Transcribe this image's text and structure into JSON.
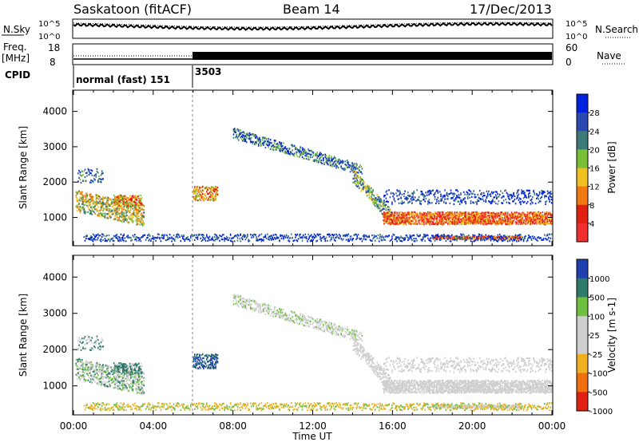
{
  "header": {
    "station": "Saskatoon (fitACF)",
    "beam": "Beam 14",
    "date": "17/Dec/2013"
  },
  "noise_panel": {
    "left_label": "N.Sky",
    "left_ticks": [
      "10^5",
      "10^0"
    ],
    "right_ticks": [
      "10^5",
      "10^0"
    ],
    "right_label": "N.Search",
    "right_legend_style": "dotted"
  },
  "freq_panel": {
    "left_label_line1": "Freq.",
    "left_label_line2": "[MHz]",
    "left_ticks": [
      "18",
      "8"
    ],
    "right_ticks": [
      "60",
      "0"
    ],
    "right_label": "Nave",
    "right_legend_style": "dotted"
  },
  "cpid": {
    "label": "CPID",
    "segments": [
      {
        "name": "normal (fast) 151",
        "start_hour": 0,
        "end_hour": 6
      },
      {
        "name": "3503",
        "start_hour": 6,
        "end_hour": 24
      }
    ]
  },
  "time_axis": {
    "label": "Time UT",
    "ticks": [
      "00:00",
      "04:00",
      "08:00",
      "12:00",
      "16:00",
      "20:00",
      "00:00"
    ]
  },
  "chart_data": [
    {
      "type": "heatmap",
      "name": "power",
      "ylabel": "Slant Range [km]",
      "xlim_hours": [
        0,
        24
      ],
      "ylim": [
        200,
        4600
      ],
      "yticks": [
        "1000",
        "2000",
        "3000",
        "4000"
      ],
      "colorbar": {
        "label": "Power [dB]",
        "ticks": [
          "28",
          "24",
          "20",
          "16",
          "12",
          "8",
          "4"
        ],
        "colors": [
          "#0022dd",
          "#2a48b0",
          "#3b7a78",
          "#7abf3a",
          "#f0c020",
          "#f07a10",
          "#e02010",
          "#f03030"
        ]
      }
    },
    {
      "type": "heatmap",
      "name": "velocity",
      "ylabel": "Slant Range [km]",
      "xlim_hours": [
        0,
        24
      ],
      "ylim": [
        200,
        4600
      ],
      "yticks": [
        "1000",
        "2000",
        "3000",
        "4000"
      ],
      "colorbar": {
        "label": "Velocity [m s-1]",
        "ticks": [
          "1000",
          "500",
          "100",
          "25",
          "-25",
          "-100",
          "-500",
          "-1000"
        ],
        "colors": [
          "#2040b0",
          "#2e7a6a",
          "#6fbf40",
          "#cfcfcf",
          "#cfcfcf",
          "#f0b020",
          "#f07010",
          "#e02010"
        ]
      }
    }
  ]
}
